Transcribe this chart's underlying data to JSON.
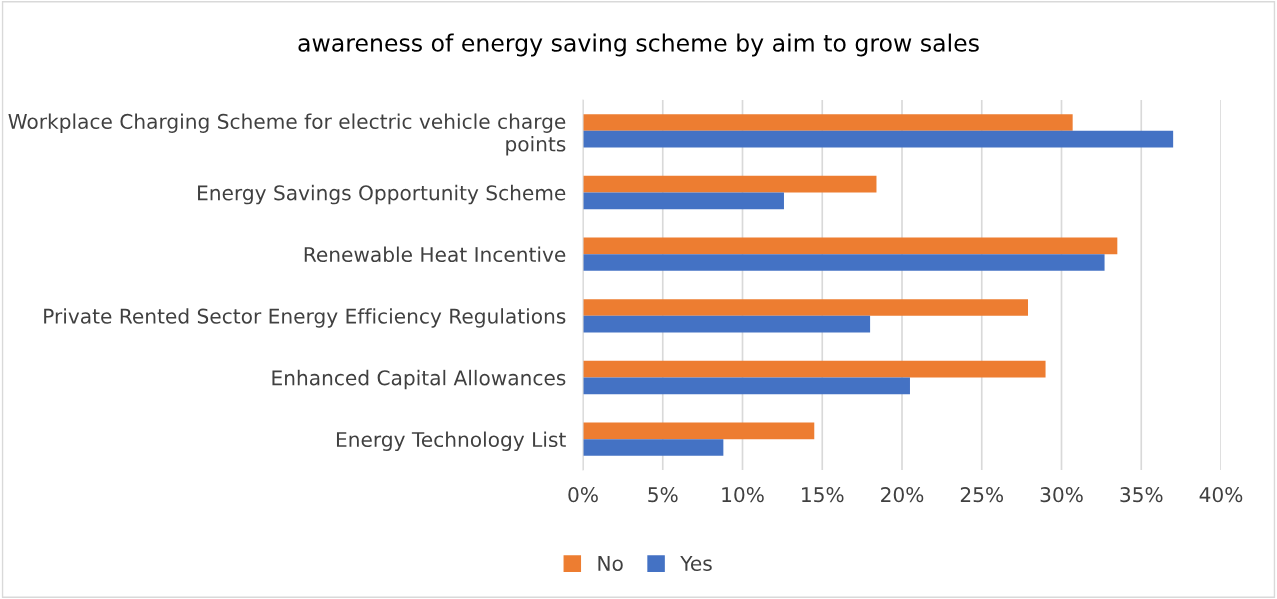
{
  "chart_data": {
    "type": "bar",
    "orientation": "horizontal",
    "title": "awareness of energy saving scheme by aim to grow sales",
    "categories": [
      "Workplace Charging Scheme for electric vehicle charge\npoints",
      "Energy Savings Opportunity Scheme",
      "Renewable Heat Incentive",
      "Private Rented Sector Energy Efficiency Regulations",
      "Enhanced Capital Allowances",
      "Energy Technology List"
    ],
    "series": [
      {
        "name": "No",
        "color": "#ed7d31",
        "values": [
          30.7,
          18.4,
          33.5,
          27.9,
          29.0,
          14.5
        ]
      },
      {
        "name": "Yes",
        "color": "#4472c4",
        "values": [
          37.0,
          12.6,
          32.7,
          18.0,
          20.5,
          8.8
        ]
      }
    ],
    "xlim": [
      0,
      40
    ],
    "xticks": [
      {
        "value": 0,
        "label": "0%"
      },
      {
        "value": 5,
        "label": "5%"
      },
      {
        "value": 10,
        "label": "10%"
      },
      {
        "value": 15,
        "label": "15%"
      },
      {
        "value": 20,
        "label": "20%"
      },
      {
        "value": 25,
        "label": "25%"
      },
      {
        "value": 30,
        "label": "30%"
      },
      {
        "value": 35,
        "label": "35%"
      },
      {
        "value": 40,
        "label": "40%"
      }
    ],
    "grid": "x",
    "legend": "bottom"
  }
}
